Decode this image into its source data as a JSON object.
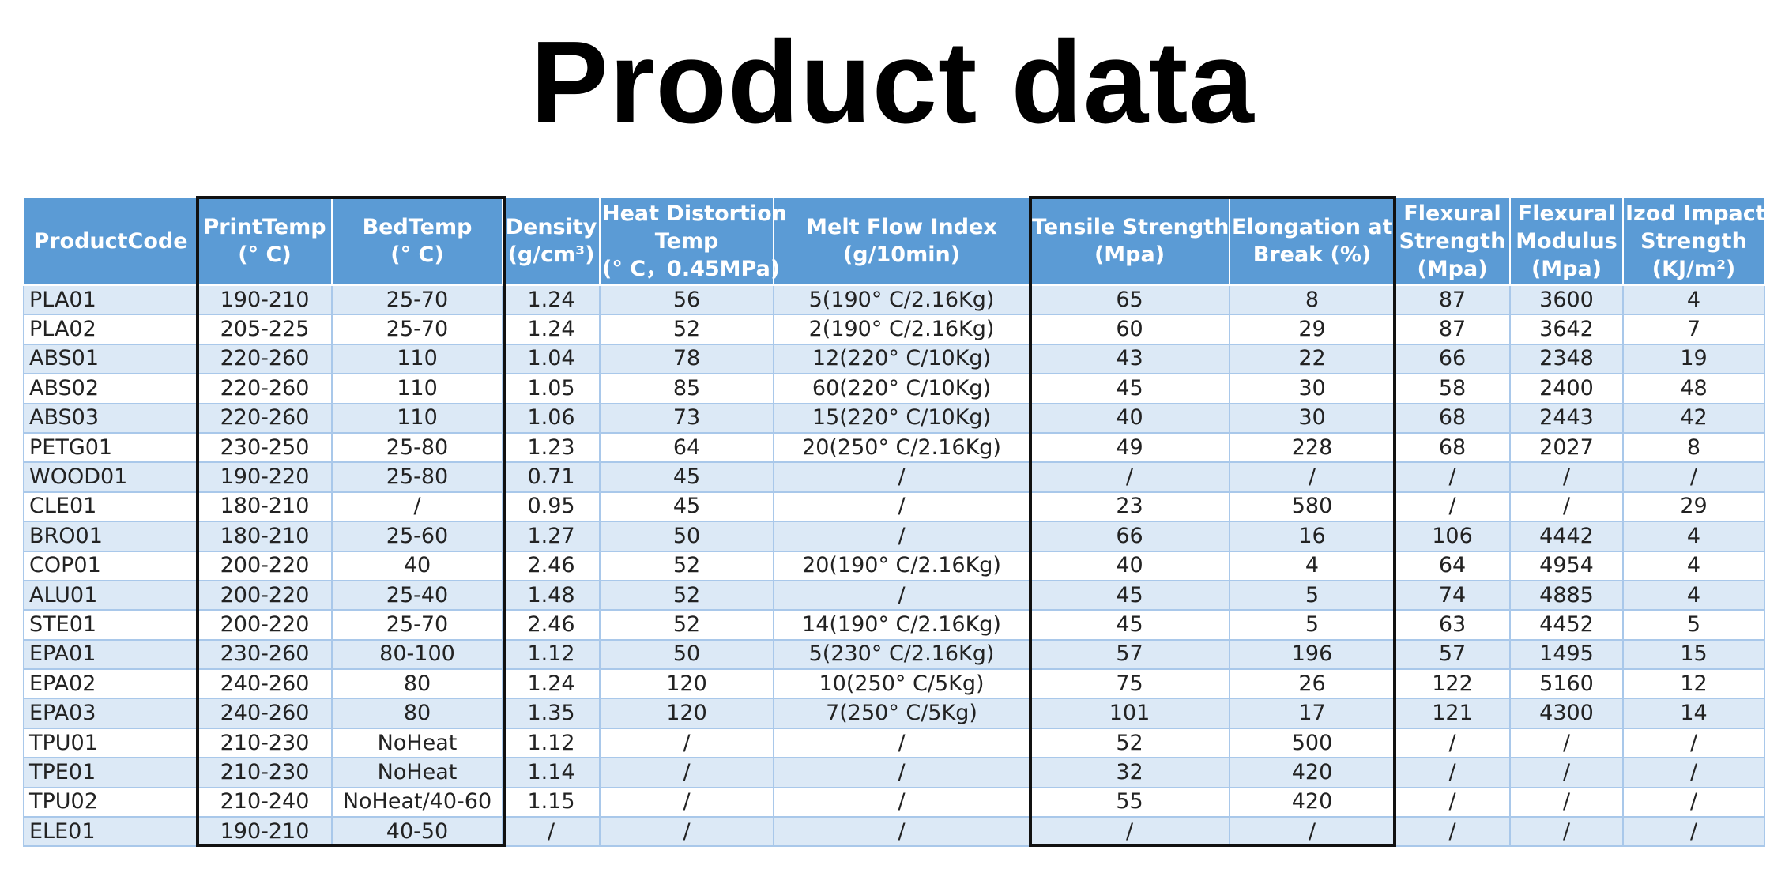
{
  "title": "Product data",
  "table": {
    "headers": [
      {
        "key": "code",
        "lines": [
          "ProductCode"
        ]
      },
      {
        "key": "print_temp",
        "lines": [
          "PrintTemp",
          "(° C)"
        ]
      },
      {
        "key": "bed_temp",
        "lines": [
          "BedTemp",
          "(° C)"
        ]
      },
      {
        "key": "density",
        "lines": [
          "Density",
          "(g/cm³)"
        ]
      },
      {
        "key": "hdt",
        "lines": [
          "Heat Distortion",
          "Temp",
          "(° C，0.45MPa)"
        ]
      },
      {
        "key": "mfi",
        "lines": [
          "Melt Flow Index",
          "(g/10min)"
        ]
      },
      {
        "key": "tensile",
        "lines": [
          "Tensile Strength",
          "(Mpa)"
        ]
      },
      {
        "key": "elongation",
        "lines": [
          "Elongation at",
          "Break (%)"
        ]
      },
      {
        "key": "flex_strength",
        "lines": [
          "Flexural",
          "Strength",
          "(Mpa)"
        ]
      },
      {
        "key": "flex_modulus",
        "lines": [
          "Flexural",
          "Modulus",
          "(Mpa)"
        ]
      },
      {
        "key": "izod",
        "lines": [
          "Izod Impact",
          "Strength",
          "(KJ/m²)"
        ]
      }
    ],
    "rows": [
      [
        "PLA01",
        "190-210",
        "25-70",
        "1.24",
        "56",
        "5(190° C/2.16Kg)",
        "65",
        "8",
        "87",
        "3600",
        "4"
      ],
      [
        "PLA02",
        "205-225",
        "25-70",
        "1.24",
        "52",
        "2(190° C/2.16Kg)",
        "60",
        "29",
        "87",
        "3642",
        "7"
      ],
      [
        "ABS01",
        "220-260",
        "110",
        "1.04",
        "78",
        "12(220° C/10Kg)",
        "43",
        "22",
        "66",
        "2348",
        "19"
      ],
      [
        "ABS02",
        "220-260",
        "110",
        "1.05",
        "85",
        "60(220° C/10Kg)",
        "45",
        "30",
        "58",
        "2400",
        "48"
      ],
      [
        "ABS03",
        "220-260",
        "110",
        "1.06",
        "73",
        "15(220° C/10Kg)",
        "40",
        "30",
        "68",
        "2443",
        "42"
      ],
      [
        "PETG01",
        "230-250",
        "25-80",
        "1.23",
        "64",
        "20(250° C/2.16Kg)",
        "49",
        "228",
        "68",
        "2027",
        "8"
      ],
      [
        "WOOD01",
        "190-220",
        "25-80",
        "0.71",
        "45",
        "/",
        "/",
        "/",
        "/",
        "/",
        "/"
      ],
      [
        "CLE01",
        "180-210",
        "/",
        "0.95",
        "45",
        "/",
        "23",
        "580",
        "/",
        "/",
        "29"
      ],
      [
        "BRO01",
        "180-210",
        "25-60",
        "1.27",
        "50",
        "/",
        "66",
        "16",
        "106",
        "4442",
        "4"
      ],
      [
        "COP01",
        "200-220",
        "40",
        "2.46",
        "52",
        "20(190° C/2.16Kg)",
        "40",
        "4",
        "64",
        "4954",
        "4"
      ],
      [
        "ALU01",
        "200-220",
        "25-40",
        "1.48",
        "52",
        "/",
        "45",
        "5",
        "74",
        "4885",
        "4"
      ],
      [
        "STE01",
        "200-220",
        "25-70",
        "2.46",
        "52",
        "14(190° C/2.16Kg)",
        "45",
        "5",
        "63",
        "4452",
        "5"
      ],
      [
        "EPA01",
        "230-260",
        "80-100",
        "1.12",
        "50",
        "5(230° C/2.16Kg)",
        "57",
        "196",
        "57",
        "1495",
        "15"
      ],
      [
        "EPA02",
        "240-260",
        "80",
        "1.24",
        "120",
        "10(250° C/5Kg)",
        "75",
        "26",
        "122",
        "5160",
        "12"
      ],
      [
        "EPA03",
        "240-260",
        "80",
        "1.35",
        "120",
        "7(250° C/5Kg)",
        "101",
        "17",
        "121",
        "4300",
        "14"
      ],
      [
        "TPU01",
        "210-230",
        "NoHeat",
        "1.12",
        "/",
        "/",
        "52",
        "500",
        "/",
        "/",
        "/"
      ],
      [
        "TPE01",
        "210-230",
        "NoHeat",
        "1.14",
        "/",
        "/",
        "32",
        "420",
        "/",
        "/",
        "/"
      ],
      [
        "TPU02",
        "210-240",
        "NoHeat/40-60",
        "1.15",
        "/",
        "/",
        "55",
        "420",
        "/",
        "/",
        "/"
      ],
      [
        "ELE01",
        "190-210",
        "40-50",
        "/",
        "/",
        "/",
        "/",
        "/",
        "/",
        "/",
        "/"
      ]
    ]
  }
}
